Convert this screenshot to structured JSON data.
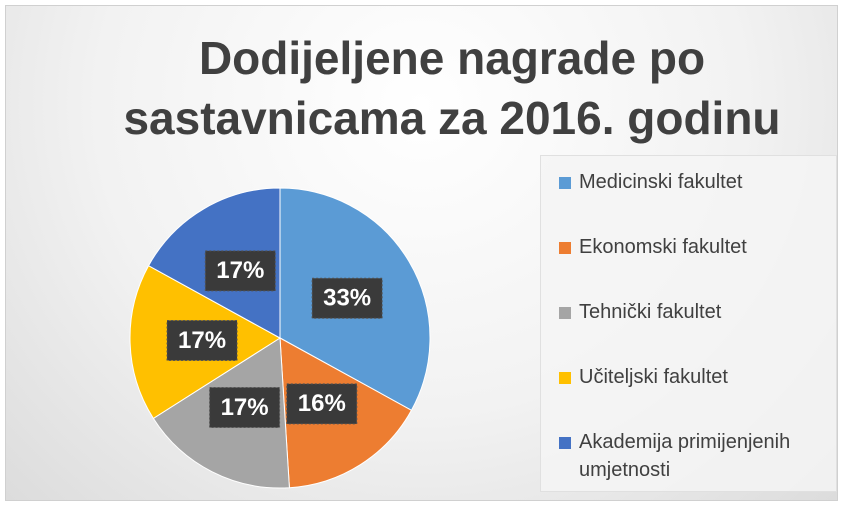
{
  "chart_data": {
    "type": "pie",
    "title": "Dodijeljene nagrade po sastavnicama za 2016. godinu",
    "categories": [
      "Medicinski fakultet",
      "Ekonomski fakultet",
      "Tehnički fakultet",
      "Učiteljski fakultet",
      "Akademija primijenjenih umjetnosti"
    ],
    "values": [
      33,
      16,
      17,
      17,
      17
    ],
    "value_labels": [
      "33%",
      "16%",
      "17%",
      "17%",
      "17%"
    ],
    "colors": [
      "#5b9bd5",
      "#ed7d31",
      "#a5a5a5",
      "#ffc000",
      "#4472c4"
    ],
    "legend": "right"
  }
}
